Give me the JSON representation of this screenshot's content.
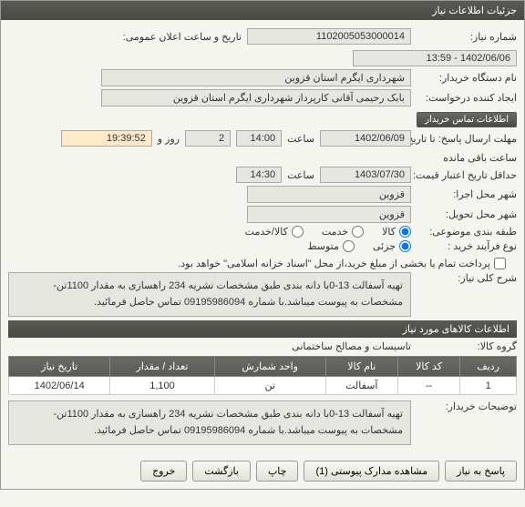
{
  "panel_title": "جزئیات اطلاعات نیاز",
  "fields": {
    "need_no_label": "شماره نیاز:",
    "need_no": "1102005053000014",
    "announce_dt_label": "تاریخ و ساعت اعلان عمومی:",
    "announce_dt": "1402/06/06 - 13:59",
    "buyer_label": "نام دستگاه خریدار:",
    "buyer": "شهرداری ایگرم استان قزوین",
    "request_label": "ایجاد کننده درخواست:",
    "request": "بابک  رحیمی آقانی  کارپرداز شهرداری ایگرم استان قزوین",
    "contact_btn": "اطلاعات تماس خریدار",
    "deadline_label": "مهلت ارسال پاسخ: تا تاریخ:",
    "deadline_date": "1402/06/09",
    "deadline_time_lbl": "ساعت",
    "deadline_time": "14:00",
    "days_lbl": "روز و",
    "days": "2",
    "countdown": "19:39:52",
    "remaining": "ساعت باقی مانده",
    "validity_label": "حداقل تاریخ اعتبار قیمت: تا تاریخ:",
    "validity_date": "1403/07/30",
    "validity_time": "14:30",
    "exec_city_label": "شهر محل اجرا:",
    "exec_city": "قزوین",
    "deliver_city_label": "شهر محل تحویل:",
    "deliver_city": "قزوین",
    "pkg_label": "طبقه بندی موضوعی:",
    "pkg_opts": {
      "a": "کالا",
      "b": "خدمت",
      "c": "کالا/خدمت"
    },
    "process_label": "نوع فرآیند خرید :",
    "process_opts": {
      "a": "جزئی",
      "b": "متوسط"
    },
    "checkbox_text": "پرداخت تمام یا بخشی از مبلغ خرید،از محل \"اسناد خزانه اسلامی\" خواهد بود.",
    "need_desc_label": "شرح کلی نیاز:",
    "need_desc": "تهیه آسفالت 13-0با دانه بندی طبق مشخصات نشریه 234 راهسازی به مقدار 1100تن-مشخصات به پیوست میباشد.با شماره 09195986094 تماس حاصل فرمائید."
  },
  "goods_section_title": "اطلاعات کالاهای مورد نیاز",
  "goods_group_label": "گروه کالا:",
  "goods_group": "تاسیسات و مصالح ساختمانی",
  "table": {
    "headers": [
      "ردیف",
      "کد کالا",
      "نام کالا",
      "واحد شمارش",
      "تعداد / مقدار",
      "تاریخ نیاز"
    ],
    "rows": [
      [
        "1",
        "--",
        "آسفالت",
        "تن",
        "1,100",
        "1402/06/14"
      ]
    ]
  },
  "buyer_notes_label": "توضیحات خریدار:",
  "buyer_notes": "تهیه آسفالت 13-0با دانه بندی طبق مشخصات نشریه 234 راهسازی به مقدار 1100تن-مشخصات به پیوست میباشد.با شماره 09195986094 تماس حاصل فرمائید.",
  "buttons": {
    "reply": "پاسخ به نیاز",
    "attach": "مشاهده مدارک پیوستی (1)",
    "print": "چاپ",
    "back": "بازگشت",
    "exit": "خروج"
  }
}
